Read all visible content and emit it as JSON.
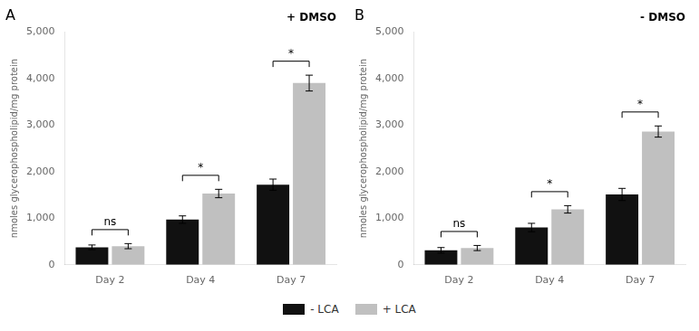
{
  "chart_data": [
    {
      "type": "bar",
      "title": "A",
      "subtitle": "+ DMSO",
      "categories": [
        "Day 2",
        "Day 4",
        "Day 7"
      ],
      "series": [
        {
          "name": "- LCA",
          "color": "#111111",
          "values": [
            375,
            970,
            1720
          ],
          "errors": [
            50,
            80,
            120
          ]
        },
        {
          "name": "+ LCA",
          "color": "#c0c0c0",
          "values": [
            400,
            1530,
            3900
          ],
          "errors": [
            55,
            90,
            170
          ]
        }
      ],
      "annotations": [
        {
          "category": "Day 2",
          "text": "ns"
        },
        {
          "category": "Day 4",
          "text": "*"
        },
        {
          "category": "Day 7",
          "text": "*"
        }
      ],
      "ylabel": "nmoles glycerophospholipid/mg protein",
      "ylim": [
        0,
        5000
      ],
      "yticks": [
        0,
        1000,
        2000,
        3000,
        4000,
        5000
      ],
      "grid": false,
      "legend": "bottom"
    },
    {
      "type": "bar",
      "title": "B",
      "subtitle": "- DMSO",
      "categories": [
        "Day 2",
        "Day 4",
        "Day 7"
      ],
      "series": [
        {
          "name": "- LCA",
          "color": "#111111",
          "values": [
            310,
            800,
            1510
          ],
          "errors": [
            60,
            90,
            130
          ]
        },
        {
          "name": "+ LCA",
          "color": "#c0c0c0",
          "values": [
            360,
            1190,
            2860
          ],
          "errors": [
            55,
            80,
            120
          ]
        }
      ],
      "annotations": [
        {
          "category": "Day 2",
          "text": "ns"
        },
        {
          "category": "Day 4",
          "text": "*"
        },
        {
          "category": "Day 7",
          "text": "*"
        }
      ],
      "ylabel": "nmoles glycerophospholipid/mg protein",
      "ylim": [
        0,
        5000
      ],
      "yticks": [
        0,
        1000,
        2000,
        3000,
        4000,
        5000
      ],
      "grid": false,
      "legend": "bottom"
    }
  ]
}
